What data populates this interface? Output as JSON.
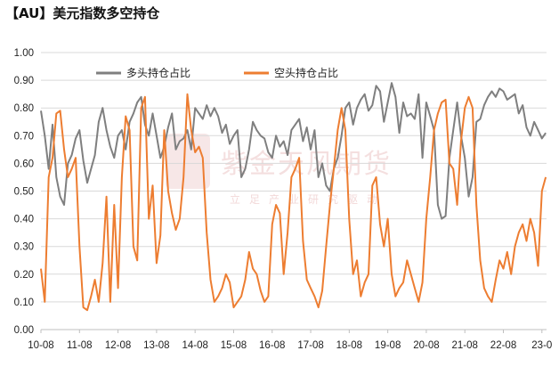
{
  "title": "【AU】美元指数多空持仓",
  "watermark": {
    "main": "紫金天风期货",
    "sub": "立足产业研究驱动"
  },
  "colors": {
    "long": "#7f7f7f",
    "short": "#ed7d31",
    "grid": "#d9d9d9",
    "axis": "#bfbfbf"
  },
  "chart_data": {
    "type": "line",
    "title": "【AU】美元指数多空持仓",
    "ylim": [
      0,
      1.0
    ],
    "y_ticks": [
      "0.00",
      "0.10",
      "0.20",
      "0.30",
      "0.40",
      "0.50",
      "0.60",
      "0.70",
      "0.80",
      "0.90",
      "1.00"
    ],
    "x_ticks": [
      "10-08",
      "11-08",
      "12-08",
      "13-08",
      "14-08",
      "15-08",
      "16-08",
      "17-08",
      "18-08",
      "19-08",
      "20-08",
      "21-08",
      "22-08",
      "23-0"
    ],
    "x_tick_years": [
      2010,
      2011,
      2012,
      2013,
      2014,
      2015,
      2016,
      2017,
      2018,
      2019,
      2020,
      2021,
      2022,
      2023
    ],
    "grid": true,
    "legend_position": "top",
    "series": [
      {
        "name": "多头持仓占比",
        "color": "#7f7f7f",
        "x": [
          2010.0,
          2010.1,
          2010.2,
          2010.3,
          2010.4,
          2010.5,
          2010.6,
          2010.7,
          2010.8,
          2010.9,
          2011.0,
          2011.1,
          2011.2,
          2011.3,
          2011.4,
          2011.5,
          2011.6,
          2011.7,
          2011.8,
          2011.9,
          2012.0,
          2012.1,
          2012.2,
          2012.3,
          2012.4,
          2012.5,
          2012.6,
          2012.7,
          2012.8,
          2012.9,
          2013.0,
          2013.1,
          2013.2,
          2013.3,
          2013.4,
          2013.5,
          2013.6,
          2013.7,
          2013.8,
          2013.9,
          2014.0,
          2014.1,
          2014.2,
          2014.3,
          2014.4,
          2014.5,
          2014.6,
          2014.7,
          2014.8,
          2014.9,
          2015.0,
          2015.1,
          2015.2,
          2015.3,
          2015.4,
          2015.5,
          2015.6,
          2015.7,
          2015.8,
          2015.9,
          2016.0,
          2016.1,
          2016.2,
          2016.3,
          2016.4,
          2016.5,
          2016.6,
          2016.7,
          2016.8,
          2016.9,
          2017.0,
          2017.1,
          2017.2,
          2017.3,
          2017.4,
          2017.5,
          2017.6,
          2017.7,
          2017.8,
          2017.9,
          2018.0,
          2018.1,
          2018.2,
          2018.3,
          2018.4,
          2018.5,
          2018.6,
          2018.7,
          2018.8,
          2018.9,
          2019.0,
          2019.1,
          2019.2,
          2019.3,
          2019.4,
          2019.5,
          2019.6,
          2019.7,
          2019.8,
          2019.9,
          2020.0,
          2020.1,
          2020.2,
          2020.3,
          2020.4,
          2020.5,
          2020.6,
          2020.7,
          2020.8,
          2020.9,
          2021.0,
          2021.1,
          2021.2,
          2021.3,
          2021.4,
          2021.5,
          2021.6,
          2021.7,
          2021.8,
          2021.9,
          2022.0,
          2022.1,
          2022.2,
          2022.3,
          2022.4,
          2022.5,
          2022.6,
          2022.7,
          2022.8,
          2022.9,
          2023.0,
          2023.1
        ],
        "values": [
          0.79,
          0.7,
          0.58,
          0.74,
          0.55,
          0.48,
          0.45,
          0.6,
          0.63,
          0.69,
          0.72,
          0.61,
          0.53,
          0.58,
          0.63,
          0.75,
          0.8,
          0.72,
          0.66,
          0.62,
          0.7,
          0.72,
          0.65,
          0.75,
          0.78,
          0.82,
          0.84,
          0.74,
          0.7,
          0.78,
          0.7,
          0.62,
          0.66,
          0.73,
          0.78,
          0.65,
          0.68,
          0.69,
          0.72,
          0.65,
          0.8,
          0.78,
          0.76,
          0.81,
          0.77,
          0.8,
          0.77,
          0.71,
          0.74,
          0.67,
          0.7,
          0.72,
          0.55,
          0.58,
          0.65,
          0.75,
          0.72,
          0.7,
          0.69,
          0.64,
          0.62,
          0.7,
          0.66,
          0.68,
          0.63,
          0.72,
          0.74,
          0.76,
          0.68,
          0.73,
          0.65,
          0.72,
          0.55,
          0.6,
          0.52,
          0.5,
          0.58,
          0.62,
          0.7,
          0.8,
          0.82,
          0.74,
          0.8,
          0.83,
          0.85,
          0.79,
          0.81,
          0.88,
          0.86,
          0.75,
          0.82,
          0.89,
          0.84,
          0.71,
          0.82,
          0.77,
          0.78,
          0.76,
          0.85,
          0.62,
          0.82,
          0.77,
          0.72,
          0.45,
          0.4,
          0.41,
          0.62,
          0.72,
          0.82,
          0.7,
          0.62,
          0.48,
          0.55,
          0.75,
          0.76,
          0.81,
          0.84,
          0.86,
          0.84,
          0.87,
          0.86,
          0.83,
          0.84,
          0.85,
          0.78,
          0.81,
          0.73,
          0.7,
          0.75,
          0.72,
          0.69,
          0.71
        ]
      },
      {
        "name": "空头持仓占比",
        "color": "#ed7d31",
        "x": [
          2010.0,
          2010.1,
          2010.2,
          2010.3,
          2010.4,
          2010.5,
          2010.6,
          2010.7,
          2010.8,
          2010.9,
          2011.0,
          2011.1,
          2011.2,
          2011.3,
          2011.4,
          2011.5,
          2011.6,
          2011.7,
          2011.8,
          2011.9,
          2012.0,
          2012.1,
          2012.2,
          2012.3,
          2012.4,
          2012.5,
          2012.6,
          2012.7,
          2012.8,
          2012.9,
          2013.0,
          2013.1,
          2013.2,
          2013.3,
          2013.4,
          2013.5,
          2013.6,
          2013.7,
          2013.8,
          2013.9,
          2014.0,
          2014.1,
          2014.2,
          2014.3,
          2014.4,
          2014.5,
          2014.6,
          2014.7,
          2014.8,
          2014.9,
          2015.0,
          2015.1,
          2015.2,
          2015.3,
          2015.4,
          2015.5,
          2015.6,
          2015.7,
          2015.8,
          2015.9,
          2016.0,
          2016.1,
          2016.2,
          2016.3,
          2016.4,
          2016.5,
          2016.6,
          2016.7,
          2016.8,
          2016.9,
          2017.0,
          2017.1,
          2017.2,
          2017.3,
          2017.4,
          2017.5,
          2017.6,
          2017.7,
          2017.8,
          2017.9,
          2018.0,
          2018.1,
          2018.2,
          2018.3,
          2018.4,
          2018.5,
          2018.6,
          2018.7,
          2018.8,
          2018.9,
          2019.0,
          2019.1,
          2019.2,
          2019.3,
          2019.4,
          2019.5,
          2019.6,
          2019.7,
          2019.8,
          2019.9,
          2020.0,
          2020.1,
          2020.2,
          2020.3,
          2020.4,
          2020.5,
          2020.6,
          2020.7,
          2020.8,
          2020.9,
          2021.0,
          2021.1,
          2021.2,
          2021.3,
          2021.4,
          2021.5,
          2021.6,
          2021.7,
          2021.8,
          2021.9,
          2022.0,
          2022.1,
          2022.2,
          2022.3,
          2022.4,
          2022.5,
          2022.6,
          2022.7,
          2022.8,
          2022.9,
          2023.0,
          2023.1
        ],
        "values": [
          0.22,
          0.1,
          0.55,
          0.62,
          0.78,
          0.79,
          0.65,
          0.55,
          0.58,
          0.62,
          0.3,
          0.08,
          0.07,
          0.12,
          0.18,
          0.1,
          0.24,
          0.48,
          0.1,
          0.45,
          0.15,
          0.55,
          0.77,
          0.72,
          0.3,
          0.25,
          0.8,
          0.84,
          0.4,
          0.52,
          0.24,
          0.34,
          0.72,
          0.5,
          0.42,
          0.36,
          0.4,
          0.55,
          0.85,
          0.72,
          0.64,
          0.66,
          0.62,
          0.35,
          0.18,
          0.1,
          0.12,
          0.15,
          0.2,
          0.17,
          0.08,
          0.1,
          0.12,
          0.18,
          0.28,
          0.22,
          0.2,
          0.14,
          0.1,
          0.12,
          0.38,
          0.45,
          0.42,
          0.2,
          0.35,
          0.55,
          0.58,
          0.62,
          0.32,
          0.18,
          0.15,
          0.12,
          0.08,
          0.14,
          0.3,
          0.45,
          0.58,
          0.72,
          0.8,
          0.72,
          0.4,
          0.2,
          0.25,
          0.12,
          0.17,
          0.2,
          0.52,
          0.55,
          0.38,
          0.3,
          0.4,
          0.2,
          0.12,
          0.15,
          0.17,
          0.25,
          0.2,
          0.15,
          0.1,
          0.17,
          0.4,
          0.55,
          0.72,
          0.78,
          0.82,
          0.83,
          0.6,
          0.58,
          0.45,
          0.68,
          0.8,
          0.84,
          0.8,
          0.45,
          0.25,
          0.15,
          0.12,
          0.1,
          0.18,
          0.25,
          0.22,
          0.28,
          0.2,
          0.3,
          0.35,
          0.38,
          0.32,
          0.4,
          0.35,
          0.23,
          0.5,
          0.55
        ]
      }
    ]
  }
}
